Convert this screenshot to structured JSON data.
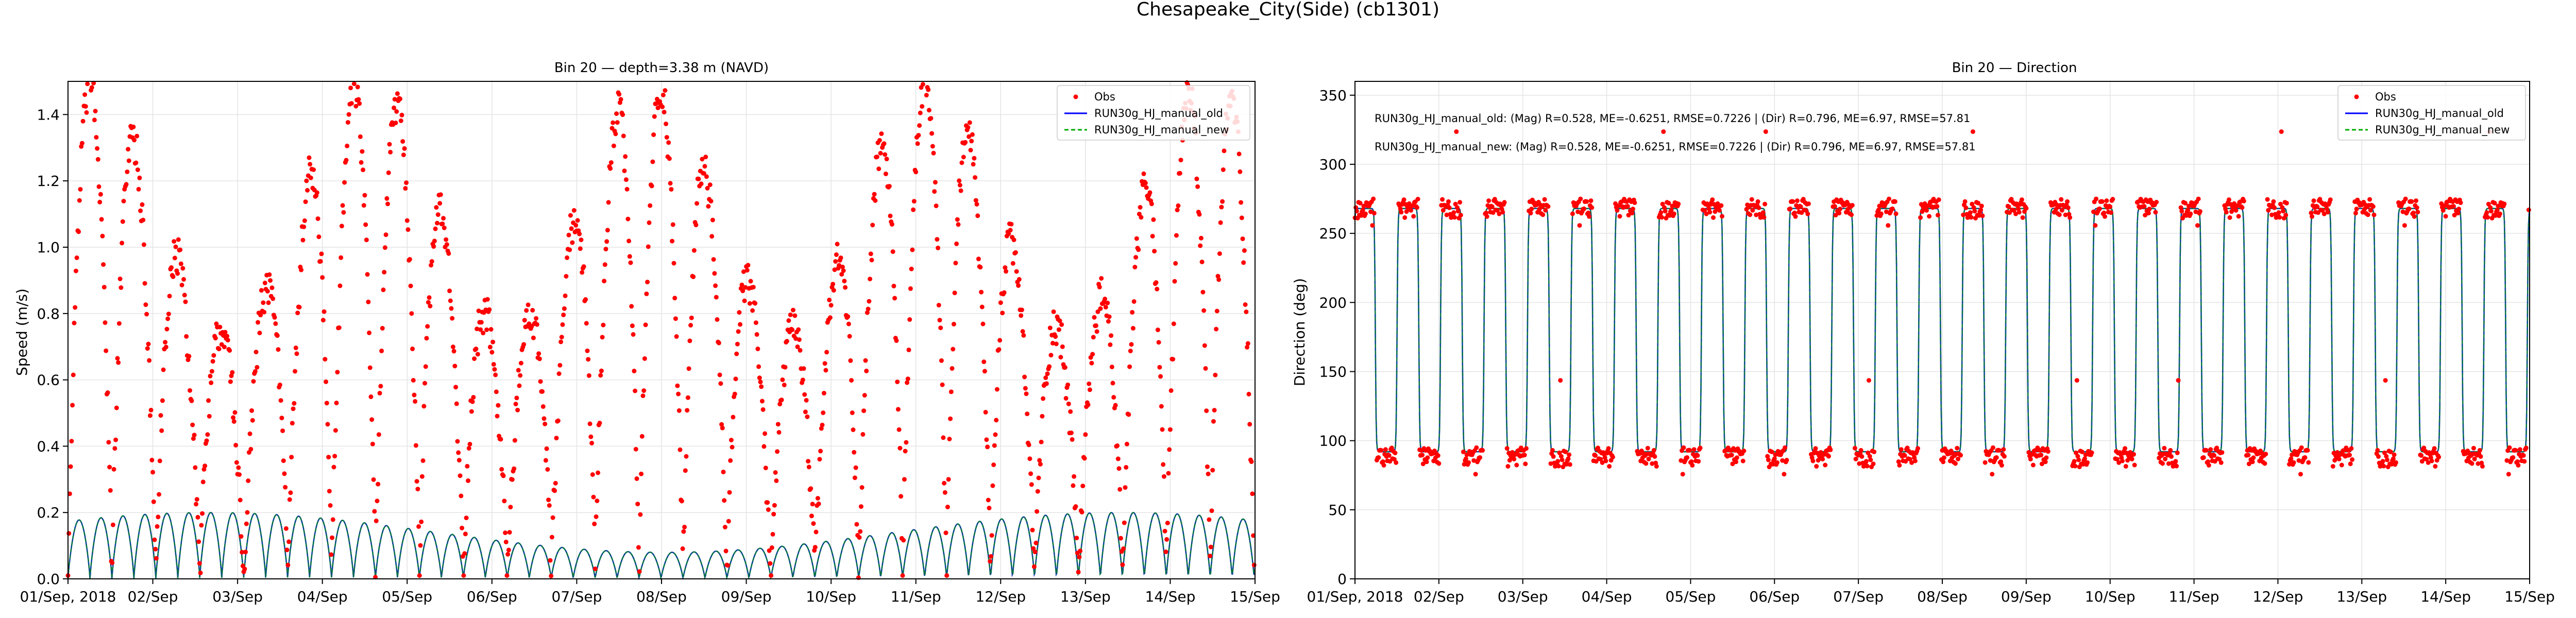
{
  "figure": {
    "title": "Chesapeake_City(Side) (cb1301)"
  },
  "chart_data": [
    {
      "type": "scatter",
      "title": "Bin 20 — depth=3.38 m (NAVD)",
      "xlabel": "",
      "ylabel": "Speed (m/s)",
      "xlim": [
        "2018-09-01",
        "2018-09-15"
      ],
      "ylim": [
        0,
        1.5
      ],
      "x_tick_labels": [
        "01/Sep, 2018",
        "02/Sep",
        "03/Sep",
        "04/Sep",
        "05/Sep",
        "06/Sep",
        "07/Sep",
        "08/Sep",
        "09/Sep",
        "10/Sep",
        "11/Sep",
        "12/Sep",
        "13/Sep",
        "14/Sep",
        "15/Sep"
      ],
      "y_ticks": [
        0.0,
        0.2,
        0.4,
        0.6,
        0.8,
        1.0,
        1.2,
        1.4
      ],
      "y_tick_labels": [
        "0.0",
        "0.2",
        "0.4",
        "0.6",
        "0.8",
        "1.0",
        "1.2",
        "1.4"
      ],
      "grid": true,
      "legend_position": "top-right",
      "legend": [
        "Obs",
        "RUN30g_HJ_manual_old",
        "RUN30g_HJ_manual_new"
      ],
      "series": [
        {
          "name": "Obs",
          "style": "points",
          "color": "#ff0000",
          "description_values": {
            "tidal_cycles_per_day": 1.93,
            "peak_speed_range": [
              0.75,
              1.5
            ],
            "min_speed": 0.0
          }
        },
        {
          "name": "RUN30g_HJ_manual_old",
          "style": "solid",
          "color": "#0000ff",
          "description_values": {
            "tidal_cycles_per_day": 3.86,
            "amplitude_range": [
              0.08,
              0.2
            ],
            "min_speed": 0.0
          }
        },
        {
          "name": "RUN30g_HJ_manual_new",
          "style": "dashed",
          "color": "#00aa00",
          "description_values": {
            "tidal_cycles_per_day": 3.86,
            "amplitude_range": [
              0.08,
              0.2
            ],
            "min_speed": 0.0
          }
        }
      ]
    },
    {
      "type": "scatter",
      "title": "Bin 20 — Direction",
      "xlabel": "",
      "ylabel": "Direction (deg)",
      "xlim": [
        "2018-09-01",
        "2018-09-15"
      ],
      "ylim": [
        0,
        360
      ],
      "x_tick_labels": [
        "01/Sep, 2018",
        "02/Sep",
        "03/Sep",
        "04/Sep",
        "05/Sep",
        "06/Sep",
        "07/Sep",
        "08/Sep",
        "09/Sep",
        "10/Sep",
        "11/Sep",
        "12/Sep",
        "13/Sep",
        "14/Sep",
        "15/Sep"
      ],
      "y_ticks": [
        0,
        50,
        100,
        150,
        200,
        250,
        300,
        350
      ],
      "y_tick_labels": [
        "0",
        "50",
        "100",
        "150",
        "200",
        "250",
        "300",
        "350"
      ],
      "grid": true,
      "legend_position": "top-right",
      "legend": [
        "Obs",
        "RUN30g_HJ_manual_old",
        "RUN30g_HJ_manual_new"
      ],
      "annotations": [
        "RUN30g_HJ_manual_old: (Mag) R=0.528, ME=-0.6251, RMSE=0.7226 | (Dir) R=0.796, ME=6.97, RMSE=57.81",
        "RUN30g_HJ_manual_new: (Mag) R=0.528, ME=-0.6251, RMSE=0.7226 | (Dir) R=0.796, ME=6.97, RMSE=57.81"
      ],
      "series": [
        {
          "name": "Obs",
          "style": "points",
          "color": "#ff0000",
          "description_values": {
            "flood_direction": 268,
            "ebb_direction": 88
          }
        },
        {
          "name": "RUN30g_HJ_manual_old",
          "style": "solid",
          "color": "#0000ff",
          "description_values": {
            "flood_direction": 268,
            "ebb_direction": 92,
            "reversals_per_day": 1.93
          }
        },
        {
          "name": "RUN30g_HJ_manual_new",
          "style": "dashed",
          "color": "#00aa00",
          "description_values": {
            "flood_direction": 268,
            "ebb_direction": 92,
            "reversals_per_day": 1.93
          }
        }
      ]
    }
  ]
}
